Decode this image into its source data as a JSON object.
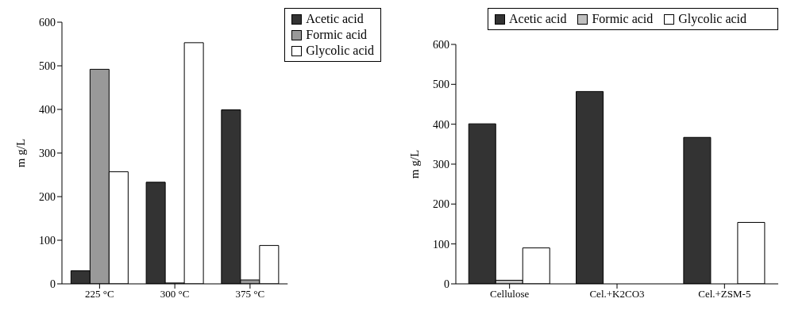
{
  "chart_data": [
    {
      "type": "bar",
      "ylabel": "m g/L",
      "categories": [
        "225 °C",
        "300 °C",
        "375 °C"
      ],
      "series": [
        {
          "name": "Acetic acid",
          "color": "#333333",
          "values": [
            30,
            233,
            399
          ]
        },
        {
          "name": "Formic acid",
          "color": "#999999",
          "values": [
            492,
            2,
            9
          ]
        },
        {
          "name": "Glycolic acid",
          "color": "#ffffff",
          "values": [
            257,
            553,
            88
          ]
        }
      ],
      "ylim": [
        0,
        600
      ],
      "yticks": [
        0,
        100,
        200,
        300,
        400,
        500,
        600
      ],
      "grid": false,
      "legend": "top right"
    },
    {
      "type": "bar",
      "ylabel": "m g/L",
      "categories": [
        "Cellulose",
        "Cel.+K2CO3",
        "Cel.+ZSM-5"
      ],
      "series": [
        {
          "name": "Acetic acid",
          "color": "#333333",
          "values": [
            401,
            482,
            367
          ]
        },
        {
          "name": "Formic acid",
          "color": "#c0c0c0",
          "values": [
            9,
            0,
            0
          ]
        },
        {
          "name": "Glycolic acid",
          "color": "#ffffff",
          "values": [
            90,
            0,
            154
          ]
        }
      ],
      "ylim": [
        0,
        600
      ],
      "yticks": [
        0,
        100,
        200,
        300,
        400,
        500,
        600
      ],
      "grid": false,
      "legend": "top"
    }
  ]
}
